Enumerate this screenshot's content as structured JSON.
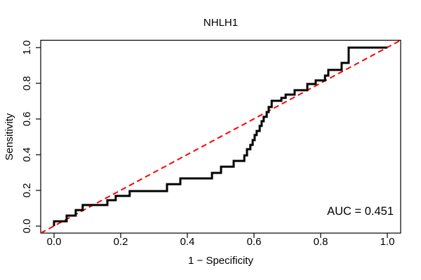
{
  "figure": {
    "title": "NHLH1",
    "auc_label": "AUC = 0.451"
  },
  "chart_data": {
    "type": "line",
    "subtype": "roc-step-curve",
    "title": "NHLH1",
    "xlabel": "1 − Specificity",
    "ylabel": "Sensitivity",
    "xlim": [
      0,
      1
    ],
    "ylim": [
      0,
      1
    ],
    "grid": false,
    "legend_position": "none",
    "x_ticks": [
      "0.0",
      "0.2",
      "0.4",
      "0.6",
      "0.8",
      "1.0"
    ],
    "y_ticks": [
      "0.0",
      "0.2",
      "0.4",
      "0.6",
      "0.8",
      "1.0"
    ],
    "x_tick_values": [
      0,
      0.2,
      0.4,
      0.6,
      0.8,
      1.0
    ],
    "y_tick_values": [
      0,
      0.2,
      0.4,
      0.6,
      0.8,
      1.0
    ],
    "annotation": "AUC = 0.451",
    "auc": 0.451,
    "colors": {
      "roc_curve": "#000000",
      "diagonal": "#FF0000",
      "axis": "#000000",
      "text": "#000000",
      "background": "#FFFFFF"
    },
    "diagonal_line": {
      "style": "dashed",
      "from": [
        0,
        0
      ],
      "to": [
        1,
        1
      ]
    },
    "series": [
      {
        "name": "ROC curve",
        "points": [
          [
            0.0,
            0.0
          ],
          [
            0.0,
            0.027
          ],
          [
            0.038,
            0.027
          ],
          [
            0.038,
            0.059
          ],
          [
            0.065,
            0.059
          ],
          [
            0.065,
            0.09
          ],
          [
            0.086,
            0.09
          ],
          [
            0.086,
            0.118
          ],
          [
            0.16,
            0.118
          ],
          [
            0.16,
            0.145
          ],
          [
            0.185,
            0.145
          ],
          [
            0.185,
            0.169
          ],
          [
            0.227,
            0.169
          ],
          [
            0.227,
            0.196
          ],
          [
            0.339,
            0.196
          ],
          [
            0.339,
            0.235
          ],
          [
            0.379,
            0.235
          ],
          [
            0.379,
            0.267
          ],
          [
            0.474,
            0.267
          ],
          [
            0.474,
            0.298
          ],
          [
            0.501,
            0.298
          ],
          [
            0.501,
            0.333
          ],
          [
            0.539,
            0.333
          ],
          [
            0.539,
            0.365
          ],
          [
            0.571,
            0.365
          ],
          [
            0.571,
            0.396
          ],
          [
            0.579,
            0.396
          ],
          [
            0.579,
            0.431
          ],
          [
            0.589,
            0.431
          ],
          [
            0.589,
            0.455
          ],
          [
            0.596,
            0.455
          ],
          [
            0.596,
            0.482
          ],
          [
            0.602,
            0.482
          ],
          [
            0.602,
            0.51
          ],
          [
            0.608,
            0.51
          ],
          [
            0.608,
            0.533
          ],
          [
            0.617,
            0.533
          ],
          [
            0.617,
            0.561
          ],
          [
            0.623,
            0.561
          ],
          [
            0.623,
            0.588
          ],
          [
            0.629,
            0.588
          ],
          [
            0.629,
            0.612
          ],
          [
            0.638,
            0.612
          ],
          [
            0.638,
            0.639
          ],
          [
            0.644,
            0.639
          ],
          [
            0.644,
            0.667
          ],
          [
            0.653,
            0.667
          ],
          [
            0.653,
            0.702
          ],
          [
            0.682,
            0.702
          ],
          [
            0.682,
            0.718
          ],
          [
            0.695,
            0.718
          ],
          [
            0.695,
            0.737
          ],
          [
            0.722,
            0.737
          ],
          [
            0.722,
            0.761
          ],
          [
            0.76,
            0.761
          ],
          [
            0.76,
            0.796
          ],
          [
            0.785,
            0.796
          ],
          [
            0.785,
            0.816
          ],
          [
            0.813,
            0.816
          ],
          [
            0.813,
            0.843
          ],
          [
            0.823,
            0.843
          ],
          [
            0.823,
            0.875
          ],
          [
            0.863,
            0.875
          ],
          [
            0.863,
            0.914
          ],
          [
            0.884,
            0.914
          ],
          [
            0.884,
            1.0
          ],
          [
            1.0,
            1.0
          ]
        ]
      }
    ]
  }
}
